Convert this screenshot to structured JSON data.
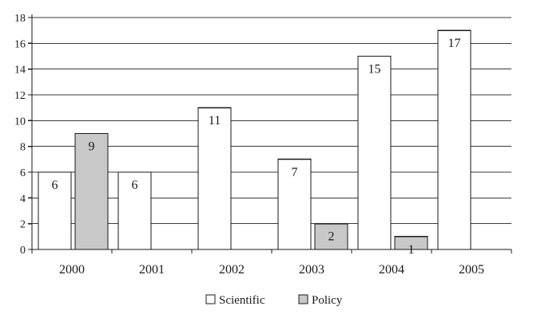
{
  "chart_data": {
    "type": "bar",
    "categories": [
      "2000",
      "2001",
      "2002",
      "2003",
      "2004",
      "2005"
    ],
    "series": [
      {
        "name": "Scientific",
        "values": [
          6,
          6,
          11,
          7,
          15,
          17
        ],
        "color": "#ffffff"
      },
      {
        "name": "Policy",
        "values": [
          9,
          null,
          null,
          2,
          1,
          null
        ],
        "color": "#c8c8c8"
      }
    ],
    "title": "",
    "xlabel": "",
    "ylabel": "",
    "ylim": [
      0,
      18
    ],
    "yticks": [
      0,
      2,
      4,
      6,
      8,
      10,
      12,
      14,
      16,
      18
    ],
    "grid": true,
    "legend": "bottom",
    "data_labels": true
  }
}
